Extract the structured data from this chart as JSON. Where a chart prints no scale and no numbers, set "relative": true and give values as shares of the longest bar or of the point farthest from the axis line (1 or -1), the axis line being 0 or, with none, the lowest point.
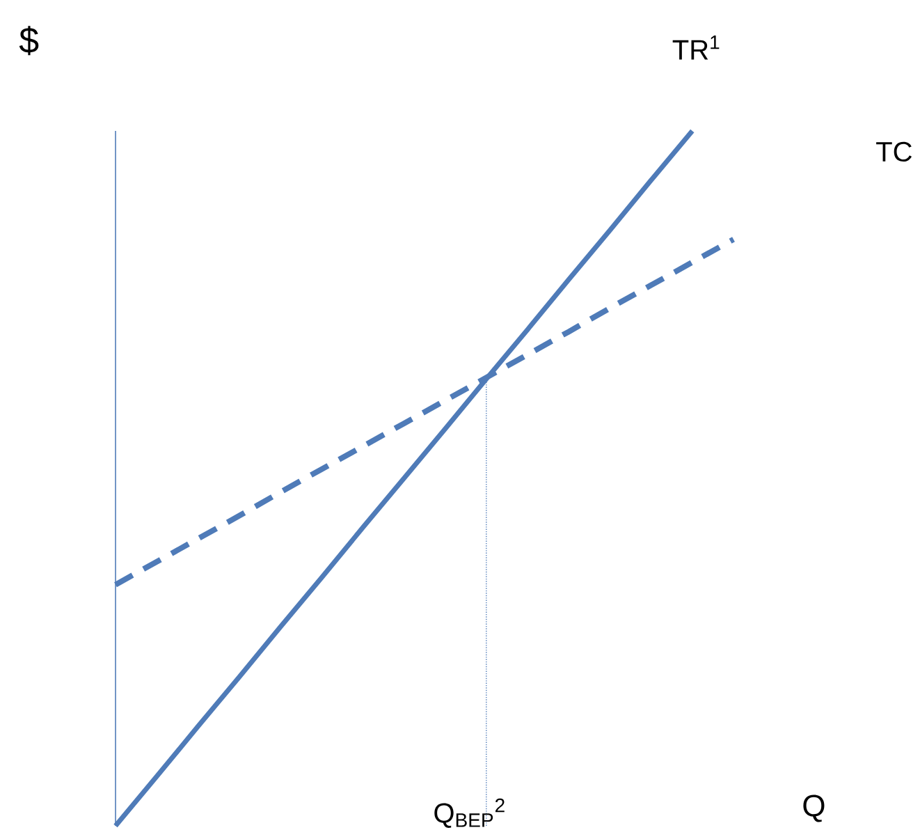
{
  "chart_data": {
    "type": "line",
    "relative": true,
    "xlabel": "Q",
    "ylabel": "$",
    "legend": false,
    "marker": "none",
    "categories": [
      null,
      null,
      null,
      null,
      null,
      null,
      null,
      null,
      null,
      null,
      null,
      null,
      null,
      null,
      null,
      null
    ],
    "series": [
      {
        "name": "TR$^{1}$",
        "color": "#4f7bb8",
        "line_style": "solid",
        "values": [
          0,
          0.071,
          0.143,
          0.214,
          0.286,
          0.357,
          0.429,
          0.5,
          0.571,
          0.643,
          0.714,
          0.786,
          0.857,
          0.929,
          1,
          null
        ]
      },
      {
        "name": "TC",
        "color": "#4f7bb8",
        "line_style": "dashed",
        "values": [
          0.347,
          0.38,
          0.413,
          0.446,
          0.48,
          0.513,
          0.546,
          0.579,
          0.612,
          0.645,
          0.678,
          0.711,
          0.745,
          0.778,
          0.811,
          0.844
        ]
      }
    ],
    "annotations": [
      "Q$_{BEP}$$^{2}$"
    ]
  }
}
